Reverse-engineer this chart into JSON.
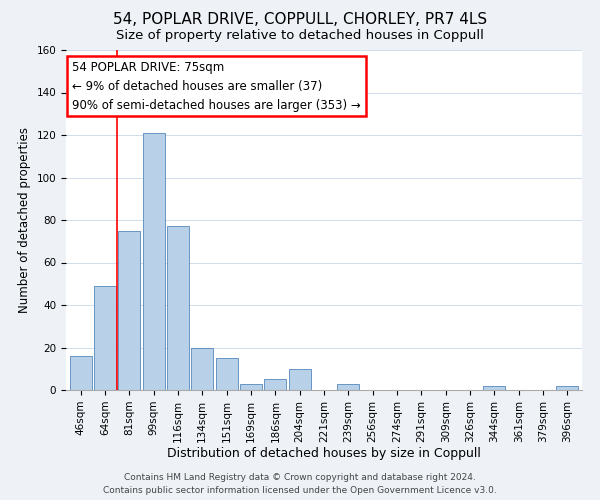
{
  "title": "54, POPLAR DRIVE, COPPULL, CHORLEY, PR7 4LS",
  "subtitle": "Size of property relative to detached houses in Coppull",
  "xlabel": "Distribution of detached houses by size in Coppull",
  "ylabel": "Number of detached properties",
  "bar_labels": [
    "46sqm",
    "64sqm",
    "81sqm",
    "99sqm",
    "116sqm",
    "134sqm",
    "151sqm",
    "169sqm",
    "186sqm",
    "204sqm",
    "221sqm",
    "239sqm",
    "256sqm",
    "274sqm",
    "291sqm",
    "309sqm",
    "326sqm",
    "344sqm",
    "361sqm",
    "379sqm",
    "396sqm"
  ],
  "bar_values": [
    16,
    49,
    75,
    121,
    77,
    20,
    15,
    3,
    5,
    10,
    0,
    3,
    0,
    0,
    0,
    0,
    0,
    2,
    0,
    0,
    2
  ],
  "bar_color": "#b8d0e8",
  "bar_edge_color": "#5588bb",
  "ylim": [
    0,
    160
  ],
  "yticks": [
    0,
    20,
    40,
    60,
    80,
    100,
    120,
    140,
    160
  ],
  "annotation_box_text": "54 POPLAR DRIVE: 75sqm\n← 9% of detached houses are smaller (37)\n90% of semi-detached houses are larger (353) →",
  "red_line_bar_index": 2,
  "footer_line1": "Contains HM Land Registry data © Crown copyright and database right 2024.",
  "footer_line2": "Contains public sector information licensed under the Open Government Licence v3.0.",
  "background_color": "#eef2f7",
  "plot_background": "#ffffff",
  "title_fontsize": 11,
  "subtitle_fontsize": 9.5,
  "xlabel_fontsize": 9,
  "ylabel_fontsize": 8.5,
  "tick_fontsize": 7.5,
  "footer_fontsize": 6.5,
  "annotation_fontsize": 8.5
}
